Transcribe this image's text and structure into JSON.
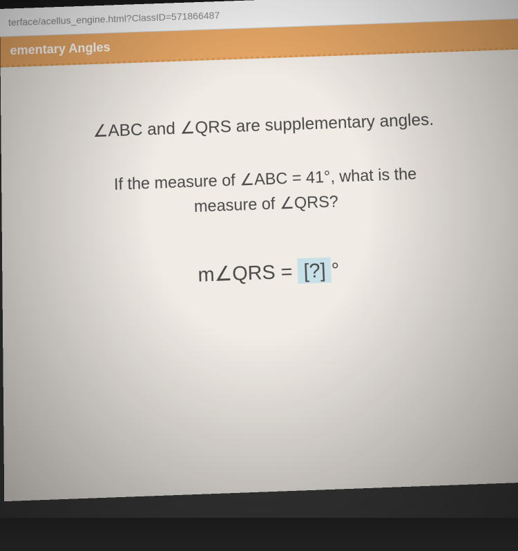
{
  "browser": {
    "url_fragment": "terface/acellus_engine.html?ClassID=571866487"
  },
  "lesson": {
    "title_fragment": "ementary Angles"
  },
  "problem": {
    "line1_pre": "ABC and ",
    "line1_mid": "QRS are supplementary angles.",
    "line2_pre": "If the measure of ",
    "line2_abc_eq": "ABC = 41°, what is the",
    "line2_sub": "measure of ",
    "line2_qrs": "QRS?",
    "answer_prefix": "m",
    "answer_angle": "QRS = ",
    "answer_placeholder": "[?]",
    "answer_suffix": "°"
  },
  "colors": {
    "header_bg": "#e8a968",
    "header_text": "#ffffff",
    "content_bg": "#f0ebe5",
    "text_color": "#4a4a4a",
    "answer_box_bg": "#c8e0e8",
    "url_color": "#888888"
  }
}
